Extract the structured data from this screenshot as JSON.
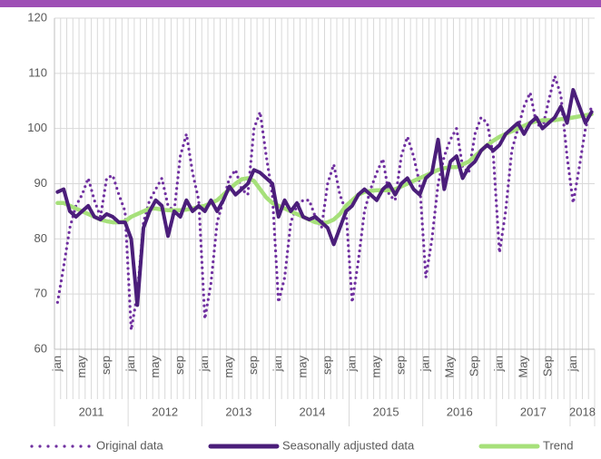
{
  "chart_data": {
    "type": "line",
    "categories": [
      "jan",
      null,
      null,
      null,
      "may",
      null,
      null,
      null,
      "sep",
      null,
      null,
      null,
      "jan",
      null,
      null,
      null,
      "may",
      null,
      null,
      null,
      "sep",
      null,
      null,
      null,
      "jan",
      null,
      null,
      null,
      "may",
      null,
      null,
      null,
      "sep",
      null,
      null,
      null,
      "jan",
      null,
      null,
      null,
      "may",
      null,
      null,
      null,
      "sep",
      null,
      null,
      null,
      "jan",
      null,
      null,
      null,
      "may",
      null,
      null,
      null,
      "sep",
      null,
      null,
      null,
      "jan",
      null,
      null,
      null,
      "May",
      null,
      null,
      null,
      "Sep",
      null,
      null,
      null,
      "jan",
      null,
      null,
      null,
      "May",
      null,
      null,
      null,
      "Sep",
      null,
      null,
      null,
      "jan",
      null,
      null,
      null
    ],
    "years": [
      "2011",
      "2012",
      "2013",
      "2014",
      "2015",
      "2016",
      "2017",
      "2018"
    ],
    "ylim": [
      60,
      120
    ],
    "yticks": [
      60,
      70,
      80,
      90,
      100,
      110,
      120
    ],
    "grid": true,
    "legend": "bottom",
    "series": [
      {
        "name": "Original data",
        "color": "#7030a0",
        "style": "dotted",
        "values": [
          68.5,
          75,
          82,
          86,
          88,
          91,
          87,
          84,
          91,
          91.5,
          88,
          85,
          63.5,
          70,
          83,
          87,
          89,
          91,
          86,
          85,
          95,
          99,
          92,
          87,
          65.5,
          72,
          83,
          87,
          91,
          92.5,
          89,
          88,
          100,
          103,
          95,
          88,
          68.5,
          73,
          83,
          86,
          87,
          87,
          84,
          82,
          90,
          93.5,
          88,
          85,
          68.5,
          76,
          85,
          89,
          92,
          94.5,
          88,
          87,
          95,
          98.5,
          95,
          90,
          73,
          80,
          90,
          95,
          98,
          100,
          93,
          92,
          99,
          102,
          101,
          95,
          77.5,
          85,
          96,
          100,
          104,
          106.5,
          101,
          100,
          105,
          109.5,
          106,
          95,
          86.5,
          93,
          100,
          104
        ]
      },
      {
        "name": "Seasonally adjusted data",
        "color": "#4b1e7a",
        "style": "solid",
        "values": [
          88.5,
          89,
          85,
          84,
          85,
          86,
          84,
          83.5,
          84.5,
          84,
          83,
          83,
          80,
          68,
          82,
          85,
          87,
          86,
          80.5,
          85,
          84,
          87,
          85,
          86,
          85,
          87,
          85,
          87,
          89.5,
          88,
          89,
          90,
          92.5,
          92,
          91,
          90,
          84,
          87,
          85,
          86.5,
          84,
          83.5,
          84,
          83,
          82,
          79,
          82,
          85,
          86,
          88,
          89,
          88,
          87,
          89,
          90,
          88,
          90,
          91,
          89,
          88,
          91,
          92,
          98,
          89,
          94,
          95,
          91,
          93,
          94,
          96,
          97,
          96,
          97,
          99,
          100,
          101,
          99,
          101,
          102,
          100,
          101,
          102,
          104,
          101,
          107,
          104,
          101,
          103
        ]
      },
      {
        "name": "Trend",
        "color": "#a6e07a",
        "style": "solid",
        "values": [
          86.5,
          86.5,
          86,
          85.5,
          85,
          84.5,
          84,
          83.5,
          83.2,
          83,
          83,
          83.2,
          84,
          84.5,
          85,
          85.5,
          85.5,
          85.3,
          85.2,
          85.2,
          85.2,
          85.3,
          85.5,
          85.8,
          86,
          86.5,
          87,
          88,
          89,
          90,
          90.8,
          91,
          90.5,
          89,
          87.5,
          86.5,
          86,
          85.5,
          85,
          84.5,
          84,
          83.5,
          83,
          82.8,
          83,
          83.5,
          84.5,
          86,
          87,
          88,
          88.5,
          88.7,
          88.8,
          88.8,
          88.8,
          89,
          89.5,
          90,
          90.5,
          91,
          91.5,
          92,
          92.5,
          92.8,
          93,
          93,
          93.5,
          94,
          95,
          96,
          97,
          97.8,
          98.5,
          99,
          99.5,
          100,
          100.5,
          101,
          101.3,
          101.5,
          101.5,
          101.5,
          101.7,
          101.8,
          102,
          102.2,
          102.4,
          102.6
        ]
      }
    ]
  }
}
